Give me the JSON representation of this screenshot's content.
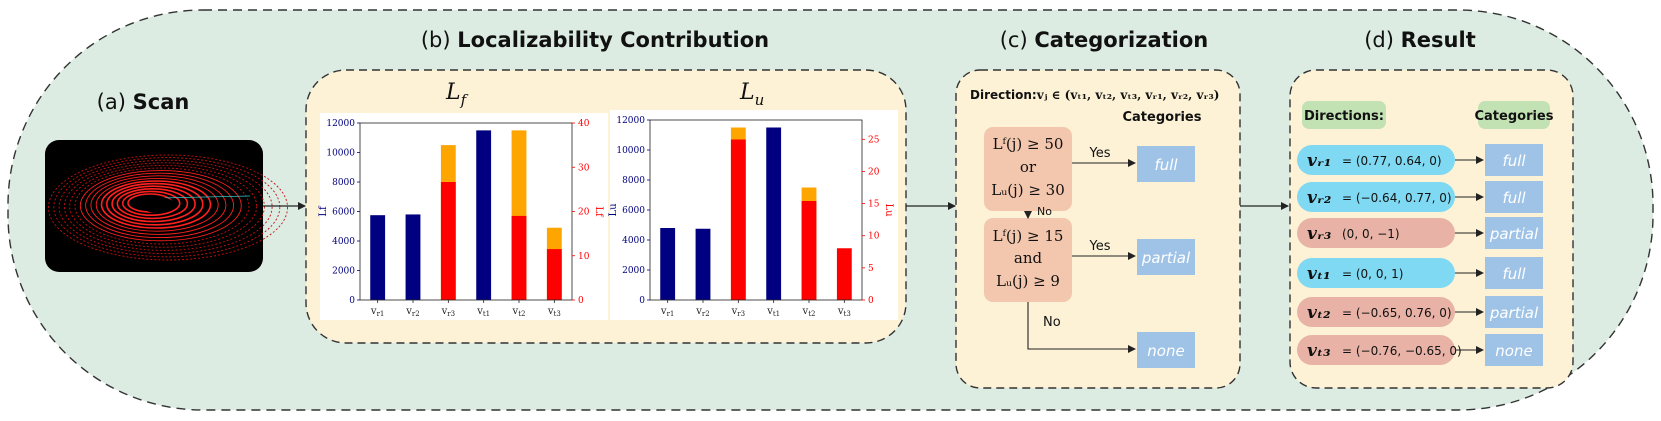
{
  "colors": {
    "outer_bg": "#dcece2",
    "panel_bg": "#fdf2d6",
    "blue_bar": "#000080",
    "red_bar": "#ff0000",
    "orange_bar": "#ffa500",
    "box_blue": "#9fc3e6",
    "cond_pink": "#f3c6ae",
    "vec_cyan": "#7fd9f2",
    "vec_pink": "#e8b3a6",
    "label_green": "#c3e2b4"
  },
  "sections": {
    "scan": {
      "prefix": "(a)",
      "title": "Scan"
    },
    "loc": {
      "prefix": "(b)",
      "title": "Localizability Contribution"
    },
    "cat": {
      "prefix": "(c)",
      "title": "Categorization"
    },
    "result": {
      "prefix": "(d)",
      "title": "Result"
    }
  },
  "chart_data": [
    {
      "type": "bar",
      "title": "Lf",
      "ylabel": "Lf",
      "ylabel_right": "Lf",
      "categories": [
        "vr1",
        "vr2",
        "vr3",
        "vt1",
        "vt2",
        "vt3"
      ],
      "ylim": [
        0,
        12000
      ],
      "yticks": [
        "0",
        "2000",
        "4000",
        "6000",
        "8000",
        "10000",
        "12000"
      ],
      "ylim_right": [
        0,
        40
      ],
      "yticks_right": [
        "0",
        "10",
        "20",
        "30",
        "40"
      ],
      "series": [
        {
          "name": "blue",
          "axis": "left",
          "values": [
            5750,
            5800,
            0,
            11500,
            0,
            0
          ]
        },
        {
          "name": "orange",
          "axis": "left",
          "values": [
            0,
            0,
            10500,
            0,
            11500,
            4900
          ]
        },
        {
          "name": "red",
          "axis": "left",
          "values": [
            0,
            0,
            8000,
            0,
            5700,
            3450
          ]
        }
      ]
    },
    {
      "type": "bar",
      "title": "Lu",
      "ylabel": "Lu",
      "ylabel_right": "Lu",
      "categories": [
        "vr1",
        "vr2",
        "vr3",
        "vt1",
        "vt2",
        "vt3"
      ],
      "ylim": [
        0,
        12000
      ],
      "yticks": [
        "0",
        "2000",
        "4000",
        "6000",
        "8000",
        "10000",
        "12000"
      ],
      "ylim_right": [
        0,
        28
      ],
      "yticks_right": [
        "0",
        "5",
        "10",
        "15",
        "20",
        "25"
      ],
      "series": [
        {
          "name": "blue",
          "axis": "left",
          "values": [
            4800,
            4750,
            0,
            11500,
            0,
            0
          ]
        },
        {
          "name": "orange",
          "axis": "left",
          "values": [
            0,
            0,
            11500,
            0,
            7500,
            0
          ]
        },
        {
          "name": "red",
          "axis": "left",
          "values": [
            0,
            0,
            10700,
            0,
            6600,
            3450
          ]
        }
      ]
    }
  ],
  "categorization": {
    "direction_label": "Direction:",
    "direction_expr": "vⱼ ∈ (vₜ₁, vₜ₂, vₜ₃, vᵣ₁, vᵣ₂, vᵣ₃)",
    "categories_label": "Categories",
    "cond1": {
      "line1": "Lᶠ(j) ≥ 50",
      "line2": "or",
      "line3": "Lᵤ(j) ≥ 30"
    },
    "cond2": {
      "line1": "Lᶠ(j) ≥ 15",
      "line2": "and",
      "line3": "Lᵤ(j) ≥ 9"
    },
    "yes1": "Yes",
    "yes2": "Yes",
    "no1": "No",
    "no2": "No",
    "out_full": "full",
    "out_partial": "partial",
    "out_none": "none"
  },
  "result": {
    "directions_label": "Directions:",
    "categories_label": "Categories",
    "rows": [
      {
        "vec": "vᵣ₁",
        "value": "= (0.77, 0.64, 0)",
        "category": "full",
        "style": "cyan"
      },
      {
        "vec": "vᵣ₂",
        "value": "= (−0.64, 0.77, 0)",
        "category": "full",
        "style": "cyan"
      },
      {
        "vec": "vᵣ₃",
        "value": "(0, 0, −1)",
        "category": "partial",
        "style": "pink"
      },
      {
        "vec": "vₜ₁",
        "value": "= (0, 0, 1)",
        "category": "full",
        "style": "cyan"
      },
      {
        "vec": "vₜ₂",
        "value": "= (−0.65, 0.76, 0)",
        "category": "partial",
        "style": "pink"
      },
      {
        "vec": "vₜ₃",
        "value": "= (−0.76, −0.65, 0)",
        "category": "none",
        "style": "pink"
      }
    ]
  }
}
